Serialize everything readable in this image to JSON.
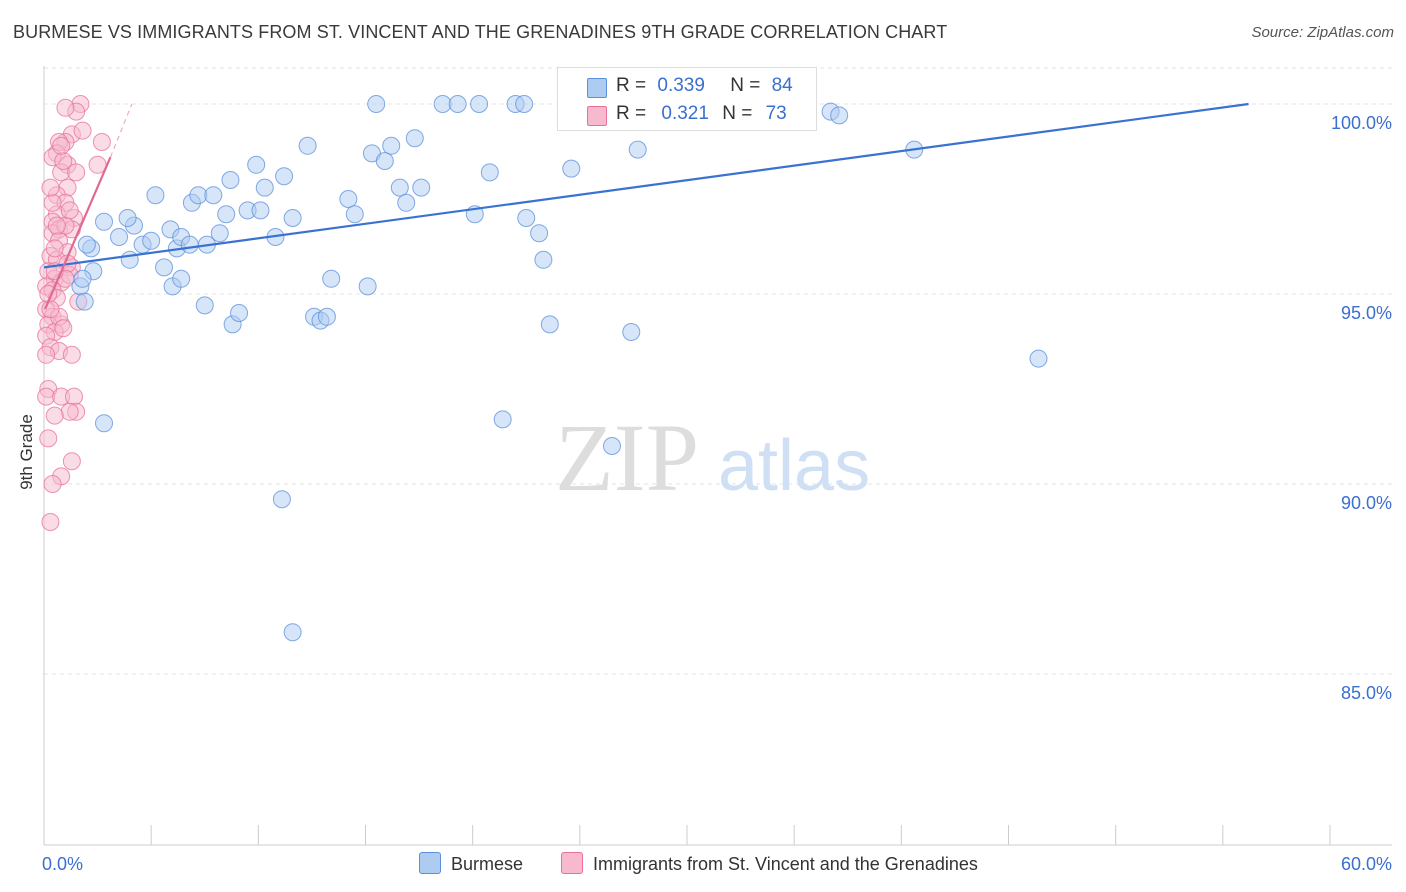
{
  "title": "BURMESE VS IMMIGRANTS FROM ST. VINCENT AND THE GRENADINES 9TH GRADE CORRELATION CHART",
  "source": "Source: ZipAtlas.com",
  "watermark": {
    "zip": "ZIP",
    "atlas": "atlas"
  },
  "legend": {
    "burmese": {
      "r_label": "R =",
      "r_value": "0.339",
      "n_label": "N =",
      "n_value": "84"
    },
    "svg": {
      "r_label": "R =",
      "r_value": "0.321",
      "n_label": "N =",
      "n_value": "73"
    }
  },
  "bottom_legend": {
    "burmese": "Burmese",
    "svg": "Immigrants from St. Vincent and the Grenadines"
  },
  "chart_data": {
    "type": "scatter",
    "ylabel": "9th Grade",
    "xlim": [
      0,
      60
    ],
    "ylim": [
      80.5,
      101
    ],
    "x_tick_labels": {
      "min": "0.0%",
      "max": "60.0%"
    },
    "y_ticks": [
      {
        "value": 100,
        "label": "100.0%"
      },
      {
        "value": 95,
        "label": "95.0%"
      },
      {
        "value": 90,
        "label": "90.0%"
      },
      {
        "value": 85,
        "label": "85.0%"
      }
    ],
    "colors": {
      "burmese": "#5b8fdb",
      "burmese_fill": "#aecbf1",
      "svg": "#e8709a",
      "svg_fill": "#f6b9cd"
    },
    "series": [
      {
        "name": "Burmese",
        "trend": {
          "x": [
            0,
            56.2
          ],
          "y": [
            95.7,
            100
          ]
        },
        "points": [
          [
            2.8,
            96.9
          ],
          [
            4.2,
            96.8
          ],
          [
            3.5,
            96.5
          ],
          [
            2.2,
            96.2
          ],
          [
            2.3,
            95.6
          ],
          [
            1.7,
            95.2
          ],
          [
            1.9,
            94.8
          ],
          [
            2.8,
            91.6
          ],
          [
            4.6,
            96.3
          ],
          [
            5.0,
            96.4
          ],
          [
            4.0,
            95.9
          ],
          [
            5.6,
            95.7
          ],
          [
            6.0,
            95.2
          ],
          [
            5.2,
            97.6
          ],
          [
            5.9,
            96.7
          ],
          [
            6.4,
            95.4
          ],
          [
            6.2,
            96.2
          ],
          [
            6.4,
            96.5
          ],
          [
            6.9,
            97.4
          ],
          [
            7.2,
            97.6
          ],
          [
            7.6,
            96.3
          ],
          [
            7.9,
            97.6
          ],
          [
            7.5,
            94.7
          ],
          [
            8.5,
            97.1
          ],
          [
            8.8,
            94.2
          ],
          [
            9.1,
            94.5
          ],
          [
            8.7,
            98.0
          ],
          [
            9.5,
            97.2
          ],
          [
            10.1,
            97.2
          ],
          [
            9.9,
            98.4
          ],
          [
            10.3,
            97.8
          ],
          [
            10.8,
            96.5
          ],
          [
            11.2,
            98.1
          ],
          [
            11.6,
            97.0
          ],
          [
            12.3,
            98.9
          ],
          [
            12.6,
            94.4
          ],
          [
            12.9,
            94.3
          ],
          [
            13.4,
            95.4
          ],
          [
            14.2,
            97.5
          ],
          [
            14.5,
            97.1
          ],
          [
            15.1,
            95.2
          ],
          [
            15.3,
            98.7
          ],
          [
            15.9,
            98.5
          ],
          [
            16.2,
            98.9
          ],
          [
            16.6,
            97.8
          ],
          [
            16.9,
            97.4
          ],
          [
            17.6,
            97.8
          ],
          [
            17.3,
            99.1
          ],
          [
            15.5,
            100
          ],
          [
            18.6,
            100
          ],
          [
            19.3,
            100
          ],
          [
            20.1,
            97.1
          ],
          [
            20.8,
            98.2
          ],
          [
            21.4,
            91.7
          ],
          [
            22.0,
            100
          ],
          [
            22.4,
            100
          ],
          [
            22.5,
            97.0
          ],
          [
            23.1,
            96.6
          ],
          [
            23.3,
            95.9
          ],
          [
            23.6,
            94.2
          ],
          [
            24.6,
            98.3
          ],
          [
            25.3,
            100
          ],
          [
            26.3,
            100
          ],
          [
            26.5,
            91.0
          ],
          [
            27.4,
            94.0
          ],
          [
            27.7,
            98.8
          ],
          [
            28.7,
            100
          ],
          [
            29.6,
            100
          ],
          [
            30.4,
            100
          ],
          [
            31.6,
            100
          ],
          [
            34.2,
            100
          ],
          [
            36.7,
            99.8
          ],
          [
            37.1,
            99.7
          ],
          [
            40.6,
            98.8
          ],
          [
            46.4,
            93.3
          ],
          [
            11.1,
            89.6
          ],
          [
            11.6,
            86.1
          ],
          [
            13.2,
            94.4
          ],
          [
            6.8,
            96.3
          ],
          [
            3.9,
            97.0
          ],
          [
            2.0,
            96.3
          ],
          [
            1.8,
            95.4
          ],
          [
            8.2,
            96.6
          ],
          [
            20.3,
            100
          ]
        ]
      },
      {
        "name": "Immigrants from St. Vincent and the Grenadines",
        "trend": {
          "x": [
            0.05,
            3.1
          ],
          "y": [
            94.6,
            98.6
          ]
        },
        "trend_dashed": {
          "x": [
            3.1,
            4.1
          ],
          "y": [
            98.6,
            100
          ]
        },
        "points": [
          [
            1.7,
            100
          ],
          [
            1.5,
            99.8
          ],
          [
            1.0,
            99.9
          ],
          [
            1.3,
            99.2
          ],
          [
            1.0,
            99.0
          ],
          [
            0.7,
            99.0
          ],
          [
            2.7,
            99.0
          ],
          [
            0.6,
            98.7
          ],
          [
            1.1,
            98.4
          ],
          [
            2.5,
            98.4
          ],
          [
            0.4,
            98.6
          ],
          [
            0.8,
            98.2
          ],
          [
            1.5,
            98.2
          ],
          [
            1.1,
            97.8
          ],
          [
            0.6,
            97.6
          ],
          [
            1.0,
            97.4
          ],
          [
            0.6,
            97.1
          ],
          [
            1.4,
            97.0
          ],
          [
            0.4,
            96.9
          ],
          [
            0.7,
            96.7
          ],
          [
            1.3,
            96.7
          ],
          [
            0.4,
            96.6
          ],
          [
            0.7,
            96.4
          ],
          [
            1.1,
            96.1
          ],
          [
            0.3,
            96.0
          ],
          [
            0.6,
            95.9
          ],
          [
            1.3,
            95.7
          ],
          [
            0.2,
            95.6
          ],
          [
            0.5,
            95.4
          ],
          [
            0.8,
            95.3
          ],
          [
            1.2,
            95.5
          ],
          [
            0.1,
            95.2
          ],
          [
            0.4,
            95.1
          ],
          [
            0.6,
            94.9
          ],
          [
            1.6,
            94.8
          ],
          [
            0.1,
            94.6
          ],
          [
            0.4,
            94.4
          ],
          [
            0.8,
            94.2
          ],
          [
            0.2,
            94.2
          ],
          [
            0.5,
            94.0
          ],
          [
            0.1,
            93.9
          ],
          [
            0.3,
            93.6
          ],
          [
            0.7,
            93.5
          ],
          [
            1.3,
            93.4
          ],
          [
            0.1,
            93.4
          ],
          [
            0.2,
            92.5
          ],
          [
            0.1,
            92.3
          ],
          [
            0.8,
            92.3
          ],
          [
            1.4,
            92.3
          ],
          [
            1.5,
            91.9
          ],
          [
            1.2,
            91.9
          ],
          [
            0.5,
            91.8
          ],
          [
            0.2,
            91.2
          ],
          [
            1.3,
            90.6
          ],
          [
            0.8,
            90.2
          ],
          [
            0.4,
            90.0
          ],
          [
            0.3,
            89.0
          ],
          [
            0.9,
            98.5
          ],
          [
            0.4,
            97.4
          ],
          [
            1.0,
            96.8
          ],
          [
            0.5,
            96.2
          ],
          [
            1.1,
            95.8
          ],
          [
            0.2,
            95.0
          ],
          [
            0.7,
            94.4
          ],
          [
            0.3,
            94.6
          ],
          [
            0.6,
            96.8
          ],
          [
            1.0,
            95.4
          ],
          [
            0.3,
            97.8
          ],
          [
            0.8,
            98.9
          ],
          [
            1.2,
            97.2
          ],
          [
            0.5,
            95.6
          ],
          [
            0.9,
            94.1
          ],
          [
            1.8,
            99.3
          ]
        ]
      }
    ]
  }
}
